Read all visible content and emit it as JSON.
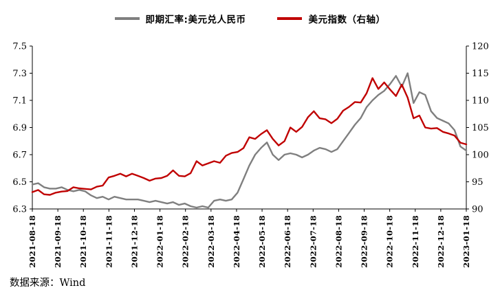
{
  "source": "数据来源：Wind",
  "legend": {
    "items": [
      {
        "label": "即期汇率:美元兑人民币",
        "color": "#7f7f7f"
      },
      {
        "label": "美元指数（右轴）",
        "color": "#c00000"
      }
    ]
  },
  "chart_data": {
    "type": "line",
    "title": "",
    "grid": false,
    "legend_position": "top",
    "x_labels": [
      "2021-08-18",
      "2021-09-18",
      "2021-10-18",
      "2021-11-18",
      "2021-12-18",
      "2022-01-18",
      "2022-02-18",
      "2022-03-18",
      "2022-04-18",
      "2022-05-18",
      "2022-06-18",
      "2022-07-18",
      "2022-08-18",
      "2022-09-18",
      "2022-10-18",
      "2022-11-18",
      "2022-12-18",
      "2023-01-18"
    ],
    "left_axis": {
      "min": 6.3,
      "max": 7.5,
      "ticks": [
        "7.5",
        "7.3",
        "7.1",
        "6.9",
        "6.7",
        "6.5",
        "6.3"
      ]
    },
    "right_axis": {
      "min": 90,
      "max": 120,
      "ticks": [
        "120",
        "115",
        "110",
        "105",
        "100",
        "95",
        "90"
      ]
    },
    "series": [
      {
        "name": "即期汇率:美元兑人民币",
        "axis": "left",
        "color": "#7f7f7f",
        "values": [
          6.48,
          6.49,
          6.46,
          6.45,
          6.45,
          6.46,
          6.44,
          6.43,
          6.44,
          6.43,
          6.4,
          6.38,
          6.39,
          6.37,
          6.39,
          6.38,
          6.37,
          6.37,
          6.37,
          6.36,
          6.35,
          6.36,
          6.35,
          6.34,
          6.35,
          6.33,
          6.34,
          6.32,
          6.31,
          6.32,
          6.31,
          6.36,
          6.37,
          6.36,
          6.37,
          6.42,
          6.52,
          6.62,
          6.7,
          6.75,
          6.79,
          6.7,
          6.66,
          6.7,
          6.71,
          6.7,
          6.68,
          6.7,
          6.73,
          6.75,
          6.74,
          6.72,
          6.74,
          6.8,
          6.86,
          6.92,
          6.97,
          7.05,
          7.1,
          7.14,
          7.17,
          7.22,
          7.28,
          7.2,
          7.3,
          7.08,
          7.16,
          7.14,
          7.02,
          6.97,
          6.95,
          6.93,
          6.88,
          6.76,
          6.73
        ]
      },
      {
        "name": "美元指数（右轴）",
        "axis": "right",
        "color": "#c00000",
        "values": [
          93.1,
          93.5,
          92.7,
          92.6,
          93.0,
          93.2,
          93.3,
          94.0,
          93.8,
          93.7,
          93.6,
          94.1,
          94.3,
          95.8,
          96.1,
          96.5,
          96.0,
          96.5,
          96.1,
          95.7,
          95.2,
          95.6,
          95.7,
          96.1,
          97.1,
          96.1,
          96.0,
          96.6,
          98.8,
          98.0,
          98.4,
          98.8,
          98.5,
          99.8,
          100.3,
          100.5,
          101.2,
          103.2,
          102.9,
          103.8,
          104.5,
          102.9,
          101.7,
          102.5,
          105.0,
          104.2,
          105.1,
          106.9,
          108.0,
          106.7,
          106.5,
          105.8,
          106.6,
          108.1,
          108.8,
          109.7,
          109.6,
          111.3,
          114.1,
          112.1,
          113.3,
          112.0,
          110.8,
          112.9,
          110.5,
          106.7,
          107.2,
          105.0,
          104.8,
          104.9,
          104.2,
          103.9,
          103.5,
          102.2,
          101.9
        ]
      }
    ]
  }
}
